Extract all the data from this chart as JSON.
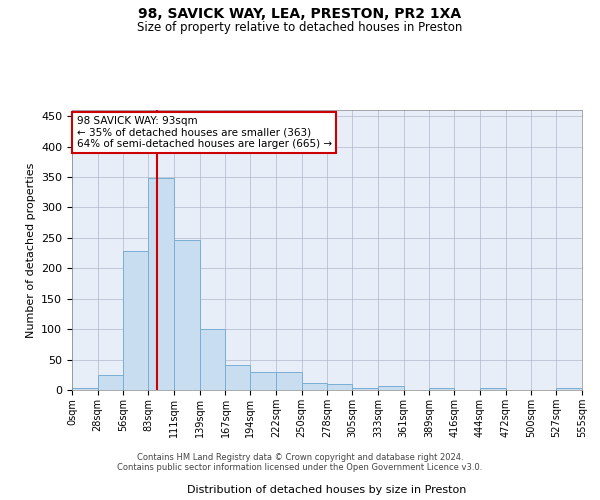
{
  "title": "98, SAVICK WAY, LEA, PRESTON, PR2 1XA",
  "subtitle": "Size of property relative to detached houses in Preston",
  "xlabel": "Distribution of detached houses by size in Preston",
  "ylabel": "Number of detached properties",
  "footer_line1": "Contains HM Land Registry data © Crown copyright and database right 2024.",
  "footer_line2": "Contains public sector information licensed under the Open Government Licence v3.0.",
  "bar_color": "#c8ddf0",
  "bar_edge_color": "#7aaed6",
  "bg_color": "#e8eef8",
  "grid_color": "#b0b8cc",
  "property_line_x": 93,
  "annotation_line1": "98 SAVICK WAY: 93sqm",
  "annotation_line2": "← 35% of detached houses are smaller (363)",
  "annotation_line3": "64% of semi-detached houses are larger (665) →",
  "annotation_box_color": "#ffffff",
  "annotation_box_edge": "#cc0000",
  "property_line_color": "#cc0000",
  "bin_edges": [
    0,
    28,
    56,
    83,
    111,
    139,
    167,
    194,
    222,
    250,
    278,
    305,
    333,
    361,
    389,
    416,
    444,
    472,
    500,
    527,
    555
  ],
  "bar_heights": [
    3,
    25,
    228,
    348,
    246,
    100,
    41,
    30,
    30,
    12,
    10,
    4,
    6,
    0,
    4,
    0,
    4,
    0,
    0,
    3
  ],
  "ylim": [
    0,
    460
  ],
  "yticks": [
    0,
    50,
    100,
    150,
    200,
    250,
    300,
    350,
    400,
    450
  ]
}
